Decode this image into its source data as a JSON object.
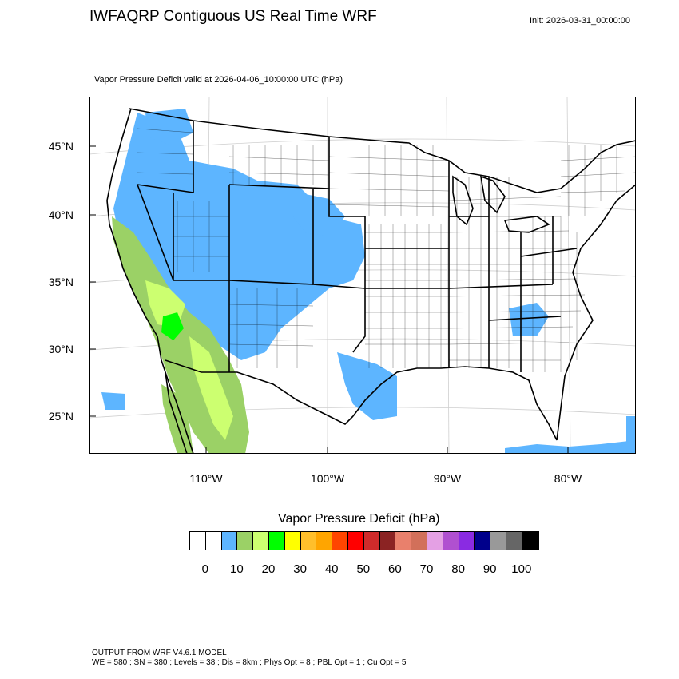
{
  "header": {
    "title": "IWFAQRP Contiguous US Real Time WRF",
    "init": "Init: 2026-03-31_00:00:00",
    "subtitle": "Vapor Pressure Deficit valid at 2026-04-06_10:00:00 UTC   (hPa)"
  },
  "axes": {
    "lat_labels": [
      "45°N",
      "40°N",
      "35°N",
      "30°N",
      "25°N"
    ],
    "lon_labels": [
      "110°W",
      "100°W",
      "90°W",
      "80°W"
    ]
  },
  "colorbar": {
    "title": "Vapor Pressure Deficit  (hPa)",
    "colors": [
      "#ffffff",
      "#ffffff",
      "#5db5ff",
      "#9bd166",
      "#ccff70",
      "#00ff00",
      "#ffff00",
      "#ffbf2b",
      "#ffa500",
      "#ff4500",
      "#ff0000",
      "#d02b2b",
      "#8b2323",
      "#e9806c",
      "#d2705a",
      "#e4a0e4",
      "#b050d0",
      "#8a2be2",
      "#00008b",
      "#999999",
      "#666666",
      "#000000"
    ],
    "labels": [
      "0",
      "10",
      "20",
      "30",
      "40",
      "50",
      "60",
      "70",
      "80",
      "90",
      "100"
    ]
  },
  "footer": {
    "line1": "OUTPUT FROM WRF V4.6.1 MODEL",
    "line2": "WE = 580 ; SN = 380 ; Levels = 38 ; Dis = 8km ; Phys Opt = 8 ; PBL Opt = 1 ; Cu Opt = 5"
  }
}
